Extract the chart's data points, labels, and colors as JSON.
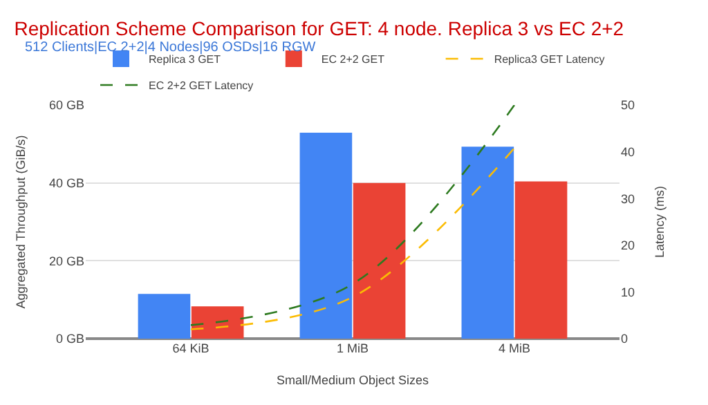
{
  "chart_data": {
    "type": "bar",
    "title": "Replication Scheme Comparison for GET: 4 node. Replica 3 vs EC 2+2",
    "subtitle": "512 Clients|EC 2+2|4 Nodes|96 OSDs|16 RGW",
    "xlabel": "Small/Medium Object Sizes",
    "ylabel": "Aggregated Throughput (GiB/s)",
    "y2label": "Latency (ms)",
    "categories": [
      "64 KiB",
      "1 MiB",
      "4 MiB"
    ],
    "series": [
      {
        "name": "Replica 3 GET",
        "color": "#4285f4",
        "values": [
          11.5,
          52.9,
          49.3
        ]
      },
      {
        "name": "EC 2+2 GET",
        "color": "#ea4335",
        "values": [
          8.3,
          40.0,
          40.4
        ]
      },
      {
        "name": "Replica3 GET Latency",
        "color": "#fbbc04",
        "type": "line",
        "axis": "y2",
        "line_style": "dashed",
        "marker": "none",
        "values": [
          2.0,
          8.9,
          40.8
        ]
      },
      {
        "name": "EC 2+2 GET Latency",
        "color": "#2d7a1f",
        "type": "line",
        "axis": "y2",
        "line_style": "dashed",
        "marker": "none",
        "values": [
          2.9,
          11.7,
          50
        ]
      }
    ],
    "ylim": [
      0,
      60
    ],
    "yticks": [
      {
        "value": 0,
        "label": "0 GB"
      },
      {
        "value": 20,
        "label": "20 GB"
      },
      {
        "value": 40,
        "label": "40 GB"
      },
      {
        "value": 60,
        "label": "60 GB"
      }
    ],
    "y2lim": [
      0,
      50
    ],
    "y2ticks": [
      0,
      10,
      20,
      30,
      40,
      50
    ],
    "grid": "y",
    "legend": "top"
  }
}
